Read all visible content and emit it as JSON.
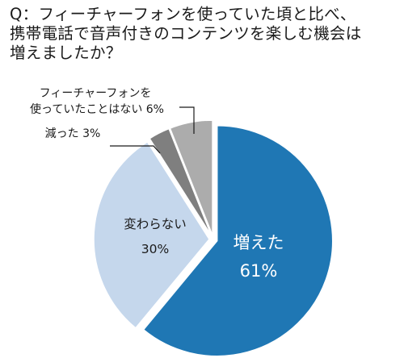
{
  "question": "Q：フィーチャーフォンを使っていた頃と比べ、\n携帯電話で音声付きのコンテンツを楽しむ機会は\n増えましたか？",
  "chart_data": {
    "type": "pie",
    "title": "Q：フィーチャーフォンを使っていた頃と比べ、携帯電話で音声付きのコンテンツを楽しむ機会は増えましたか？",
    "start_angle_deg": 0,
    "direction": "clockwise",
    "slices": [
      {
        "label": "増えた",
        "value": 61,
        "value_label": "61%",
        "color": "#1f77b4"
      },
      {
        "label": "変わらない",
        "value": 30,
        "value_label": "30%",
        "color": "#c5d7ec"
      },
      {
        "label": "減った",
        "value": 3,
        "value_label": "3%",
        "color": "#7f7f7f"
      },
      {
        "label": "フィーチャーフォンを\n使っていたことはない",
        "value": 6,
        "value_label": "6%",
        "color": "#acacac"
      }
    ]
  }
}
